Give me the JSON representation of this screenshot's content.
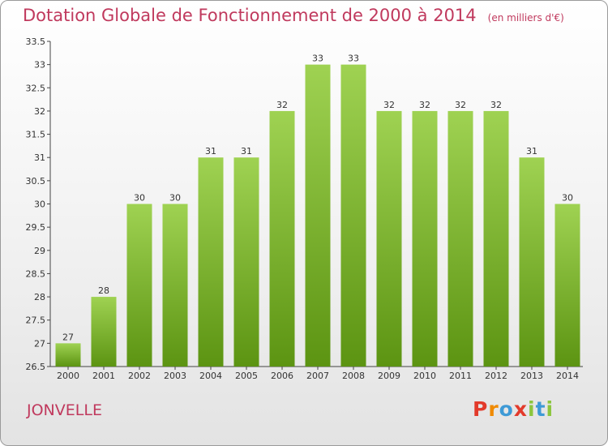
{
  "header": {
    "title": "Dotation Globale de Fonctionnement de 2000 à 2014",
    "subtitle": "(en milliers d'€)"
  },
  "footer": {
    "commune": "JONVELLE",
    "logo": [
      "P",
      "r",
      "o",
      "x",
      "i",
      "t",
      "i"
    ]
  },
  "colors": {
    "bar_light": "#9fd252",
    "bar_dark": "#5c9412",
    "title": "#c0395d",
    "logo": [
      "#e23a2b",
      "#f08a00",
      "#3e9ad6",
      "#e23a2b",
      "#8cc63e",
      "#3e9ad6",
      "#8cc63e"
    ]
  },
  "chart_data": {
    "type": "bar",
    "title": "Dotation Globale de Fonctionnement de 2000 à 2014",
    "subtitle": "(en milliers d'€)",
    "categories": [
      "2000",
      "2001",
      "2002",
      "2003",
      "2004",
      "2005",
      "2006",
      "2007",
      "2008",
      "2009",
      "2010",
      "2011",
      "2012",
      "2013",
      "2014"
    ],
    "values": [
      27,
      28,
      30,
      30,
      31,
      31,
      32,
      33,
      33,
      32,
      32,
      32,
      32,
      31,
      30
    ],
    "labels": [
      "27",
      "28",
      "30",
      "30",
      "31",
      "31",
      "32",
      "33",
      "33",
      "32",
      "32",
      "32",
      "32",
      "31",
      "30"
    ],
    "ylim": [
      26.5,
      33.5
    ],
    "yticks": [
      "26.5",
      "27",
      "27.5",
      "28",
      "28.5",
      "29",
      "29.5",
      "30",
      "30.5",
      "31",
      "31.5",
      "32",
      "32.5",
      "33",
      "33.5"
    ],
    "grid": false,
    "legend": "none"
  }
}
